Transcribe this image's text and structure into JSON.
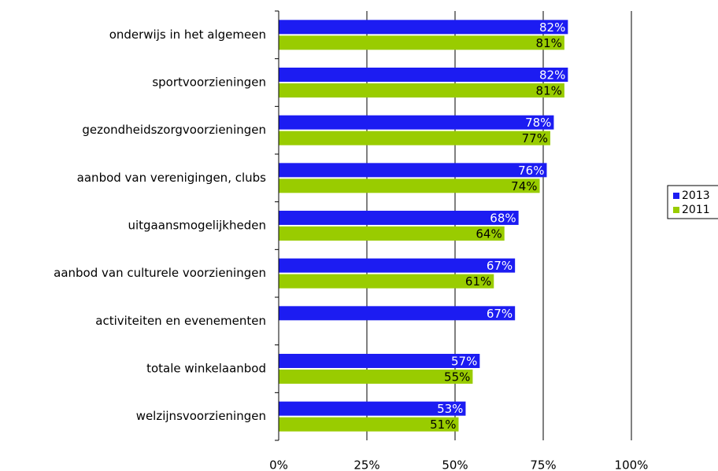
{
  "chart_data": {
    "type": "bar",
    "orientation": "horizontal",
    "categories": [
      "onderwijs in het algemeen",
      "sportvoorzieningen",
      "gezondheidszorgvoorzieningen",
      "aanbod van verenigingen, clubs",
      "uitgaansmogelijkheden",
      "aanbod van culturele voorzieningen",
      "activiteiten en evenementen",
      "totale winkelaanbod",
      "welzijnsvoorzieningen"
    ],
    "series": [
      {
        "name": "2013",
        "color": "#1c1cf2",
        "label_color": "#ffffff",
        "values": [
          82,
          82,
          78,
          76,
          68,
          67,
          67,
          57,
          53
        ],
        "value_labels": [
          "82%",
          "82%",
          "78%",
          "76%",
          "68%",
          "67%",
          "67%",
          "57%",
          "53%"
        ]
      },
      {
        "name": "2011",
        "color": "#99cc00",
        "label_color": "#000000",
        "values": [
          81,
          81,
          77,
          74,
          64,
          61,
          null,
          55,
          51
        ],
        "value_labels": [
          "81%",
          "81%",
          "77%",
          "74%",
          "64%",
          "61%",
          null,
          "55%",
          "51%"
        ]
      }
    ],
    "xlim": [
      0,
      100
    ],
    "xticks": [
      {
        "value": 0,
        "label": "0%"
      },
      {
        "value": 25,
        "label": "25%"
      },
      {
        "value": 50,
        "label": "50%"
      },
      {
        "value": 75,
        "label": "75%"
      },
      {
        "value": 100,
        "label": "100%"
      }
    ],
    "grid": true,
    "legend": "right"
  }
}
